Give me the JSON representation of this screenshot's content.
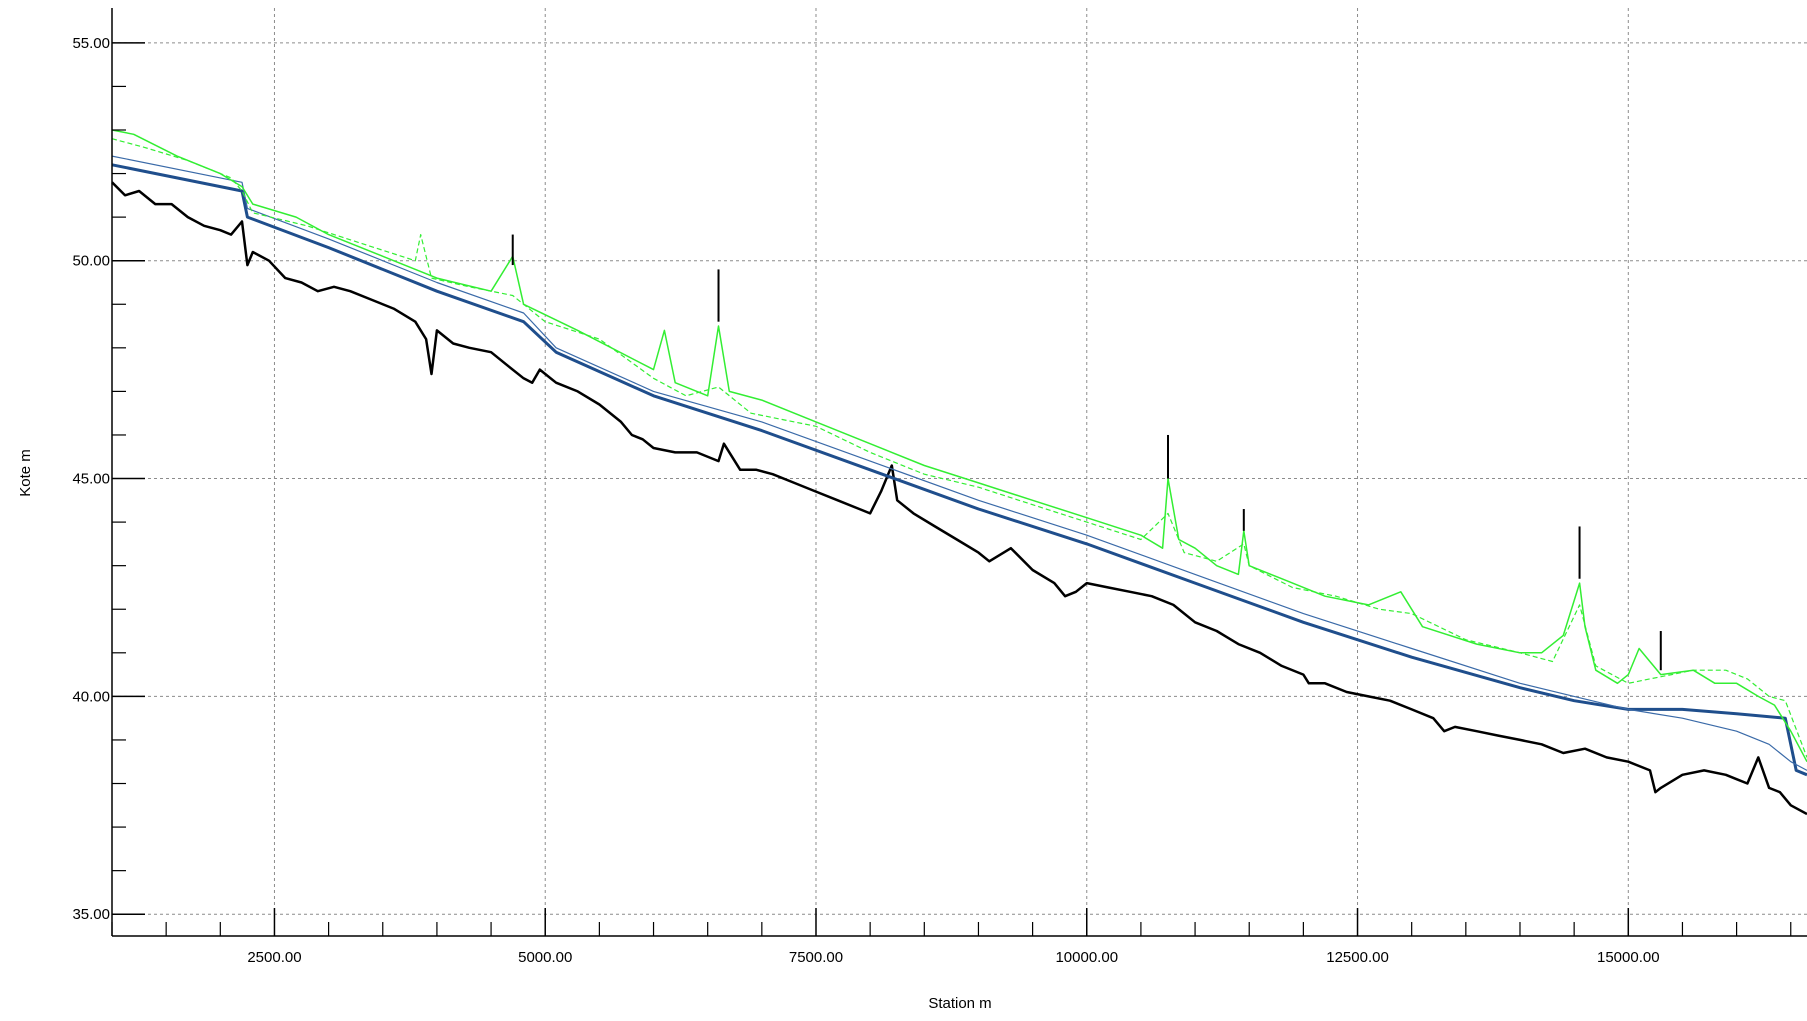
{
  "chart_data": {
    "type": "line",
    "xlabel": "Station m",
    "ylabel": "Kote m",
    "xlim": [
      1000,
      16650
    ],
    "ylim": [
      34.5,
      55.8
    ],
    "grid": true,
    "x_ticks": [
      2500,
      5000,
      7500,
      10000,
      12500,
      15000
    ],
    "x_tick_labels": [
      "2500.00",
      "5000.00",
      "7500.00",
      "10000.00",
      "12500.00",
      "15000.00"
    ],
    "x_minor_step": 500,
    "y_ticks": [
      35,
      40,
      45,
      50,
      55
    ],
    "y_tick_labels": [
      "35.00",
      "40.00",
      "45.00",
      "50.00",
      "55.00"
    ],
    "y_minor_step": 1,
    "colors": {
      "bed": "#000000",
      "water_main": "#1f4e8c",
      "water_thin": "#3a6aa8",
      "bank": "#33ee33",
      "grid": "#8c8c8c"
    },
    "series": [
      {
        "style": "bed",
        "x": [
          1000,
          1120,
          1250,
          1400,
          1550,
          1700,
          1850,
          2000,
          2100,
          2200,
          2250,
          2300,
          2450,
          2600,
          2750,
          2900,
          3050,
          3200,
          3400,
          3600,
          3800,
          3900,
          3950,
          4000,
          4150,
          4300,
          4500,
          4650,
          4800,
          4880,
          4950,
          5100,
          5300,
          5500,
          5700,
          5800,
          5900,
          6000,
          6200,
          6400,
          6600,
          6650,
          6800,
          6950,
          7100,
          7300,
          7500,
          7700,
          7900,
          8000,
          8100,
          8200,
          8250,
          8400,
          8600,
          8800,
          9000,
          9100,
          9300,
          9500,
          9700,
          9800,
          9900,
          10000,
          10200,
          10400,
          10600,
          10800,
          11000,
          11200,
          11400,
          11600,
          11800,
          12000,
          12050,
          12200,
          12400,
          12600,
          12800,
          13000,
          13200,
          13300,
          13400,
          13600,
          13800,
          14000,
          14200,
          14400,
          14600,
          14800,
          15000,
          15200,
          15250,
          15300,
          15500,
          15700,
          15900,
          16000,
          16100,
          16200,
          16300,
          16400,
          16500,
          16650
        ],
        "y": [
          51.8,
          51.5,
          51.6,
          51.3,
          51.3,
          51.0,
          50.8,
          50.7,
          50.6,
          50.9,
          49.9,
          50.2,
          50.0,
          49.6,
          49.5,
          49.3,
          49.4,
          49.3,
          49.1,
          48.9,
          48.6,
          48.2,
          47.4,
          48.4,
          48.1,
          48.0,
          47.9,
          47.6,
          47.3,
          47.2,
          47.5,
          47.2,
          47.0,
          46.7,
          46.3,
          46.0,
          45.9,
          45.7,
          45.6,
          45.6,
          45.4,
          45.8,
          45.2,
          45.2,
          45.1,
          44.9,
          44.7,
          44.5,
          44.3,
          44.2,
          44.7,
          45.3,
          44.5,
          44.2,
          43.9,
          43.6,
          43.3,
          43.1,
          43.4,
          42.9,
          42.6,
          42.3,
          42.4,
          42.6,
          42.5,
          42.4,
          42.3,
          42.1,
          41.7,
          41.5,
          41.2,
          41.0,
          40.7,
          40.5,
          40.3,
          40.3,
          40.1,
          40.0,
          39.9,
          39.7,
          39.5,
          39.2,
          39.3,
          39.2,
          39.1,
          39.0,
          38.9,
          38.7,
          38.8,
          38.6,
          38.5,
          38.3,
          37.8,
          37.9,
          38.2,
          38.3,
          38.2,
          38.1,
          38.0,
          38.6,
          37.9,
          37.8,
          37.5,
          37.3
        ]
      },
      {
        "style": "water_main",
        "x": [
          1000,
          2200,
          2250,
          3000,
          4000,
          4800,
          5100,
          6000,
          7000,
          8000,
          9000,
          10000,
          11000,
          12000,
          13000,
          14000,
          14500,
          15000,
          15500,
          16000,
          16450,
          16550,
          16650
        ],
        "y": [
          52.2,
          51.6,
          51.0,
          50.3,
          49.3,
          48.6,
          47.9,
          46.9,
          46.1,
          45.2,
          44.3,
          43.5,
          42.6,
          41.7,
          40.9,
          40.2,
          39.9,
          39.7,
          39.7,
          39.6,
          39.5,
          38.3,
          38.2
        ]
      },
      {
        "style": "water_thin",
        "x": [
          1000,
          2200,
          2250,
          3000,
          4000,
          4800,
          5100,
          6000,
          7000,
          8000,
          9000,
          10000,
          11000,
          12000,
          13000,
          14000,
          14500,
          15000,
          15500,
          16000,
          16300,
          16500,
          16650
        ],
        "y": [
          52.4,
          51.8,
          51.2,
          50.5,
          49.5,
          48.8,
          48.0,
          47.0,
          46.3,
          45.4,
          44.5,
          43.7,
          42.8,
          41.9,
          41.1,
          40.3,
          40.0,
          39.7,
          39.5,
          39.2,
          38.9,
          38.5,
          38.3
        ]
      },
      {
        "style": "bank",
        "x": [
          1000,
          1200,
          1600,
          2000,
          2200,
          2300,
          2700,
          3000,
          3500,
          4000,
          4500,
          4700,
          4800,
          5300,
          6000,
          6100,
          6200,
          6500,
          6600,
          6700,
          7000,
          7500,
          8000,
          8500,
          9000,
          9500,
          10000,
          10500,
          10700,
          10750,
          10850,
          11000,
          11200,
          11400,
          11450,
          11500,
          11800,
          12200,
          12600,
          12900,
          13100,
          13600,
          14000,
          14200,
          14400,
          14550,
          14600,
          14700,
          14900,
          15000,
          15100,
          15300,
          15600,
          15800,
          16000,
          16200,
          16350,
          16500,
          16650
        ],
        "y": [
          53.0,
          52.9,
          52.4,
          52.0,
          51.7,
          51.3,
          51.0,
          50.6,
          50.1,
          49.6,
          49.3,
          50.1,
          49.0,
          48.4,
          47.5,
          48.4,
          47.2,
          46.9,
          48.5,
          47.0,
          46.8,
          46.3,
          45.8,
          45.3,
          44.9,
          44.5,
          44.1,
          43.7,
          43.4,
          45.0,
          43.6,
          43.4,
          43.0,
          42.8,
          43.8,
          43.0,
          42.7,
          42.3,
          42.1,
          42.4,
          41.6,
          41.2,
          41.0,
          41.0,
          41.4,
          42.6,
          41.6,
          40.6,
          40.3,
          40.5,
          41.1,
          40.5,
          40.6,
          40.3,
          40.3,
          40.0,
          39.8,
          39.2,
          38.5
        ]
      },
      {
        "style": "bank_dashed",
        "x": [
          1000,
          1300,
          1700,
          2100,
          2200,
          2300,
          2800,
          3300,
          3800,
          3850,
          3950,
          4300,
          4700,
          5000,
          5500,
          6000,
          6300,
          6600,
          6900,
          7500,
          8000,
          8500,
          9000,
          9500,
          10000,
          10500,
          10750,
          10900,
          11200,
          11450,
          11500,
          11900,
          12300,
          12700,
          13000,
          13500,
          14000,
          14300,
          14550,
          14700,
          15000,
          15200,
          15400,
          15600,
          15900,
          16100,
          16300,
          16450,
          16650
        ],
        "y": [
          52.8,
          52.6,
          52.3,
          51.9,
          51.6,
          51.1,
          50.8,
          50.4,
          50.0,
          50.6,
          49.6,
          49.4,
          49.2,
          48.6,
          48.2,
          47.3,
          46.9,
          47.1,
          46.5,
          46.2,
          45.6,
          45.1,
          44.8,
          44.4,
          44.0,
          43.6,
          44.2,
          43.3,
          43.1,
          43.5,
          43.0,
          42.5,
          42.3,
          42.0,
          41.9,
          41.3,
          41.0,
          40.8,
          42.1,
          40.7,
          40.3,
          40.4,
          40.5,
          40.6,
          40.6,
          40.4,
          40.0,
          39.9,
          38.6
        ]
      },
      {
        "style": "spike",
        "x": [
          4700,
          4700,
          6600,
          6600,
          10750,
          10750,
          11450,
          11450,
          14550,
          14550,
          15300,
          15300
        ],
        "y": [
          49.9,
          50.6,
          48.6,
          49.8,
          45.0,
          46.0,
          43.8,
          44.3,
          42.7,
          43.9,
          40.6,
          41.5
        ],
        "segments": true
      }
    ]
  }
}
